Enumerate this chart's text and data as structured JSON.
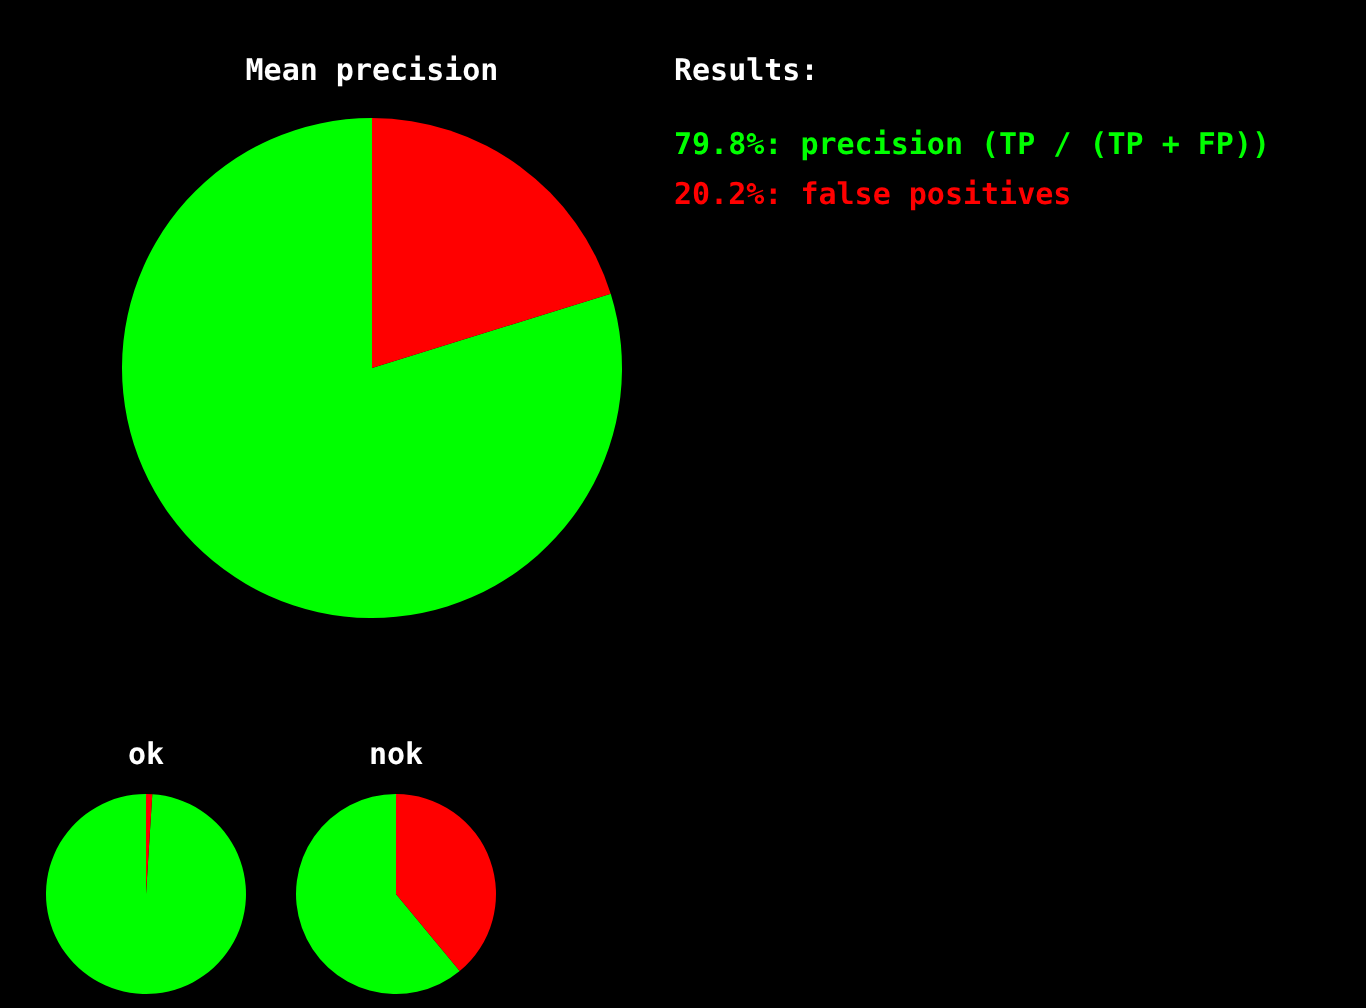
{
  "chart_data": [
    {
      "type": "pie",
      "title": "Mean precision",
      "legend_title": "Results:",
      "categories": [
        "precision (TP / (TP + FP))",
        "false positives"
      ],
      "values": [
        79.8,
        20.2
      ],
      "value_labels": [
        "79.8%",
        "20.2%"
      ],
      "colors": [
        "#00ff00",
        "#ff0000"
      ]
    },
    {
      "type": "pie",
      "title": "ok",
      "categories": [
        null,
        null
      ],
      "values": [
        99,
        1
      ],
      "colors": [
        "#00ff00",
        "#ff0000"
      ]
    },
    {
      "type": "pie",
      "title": "nok",
      "categories": [
        null,
        null
      ],
      "values": [
        61,
        39
      ],
      "colors": [
        "#00ff00",
        "#ff0000"
      ]
    }
  ]
}
